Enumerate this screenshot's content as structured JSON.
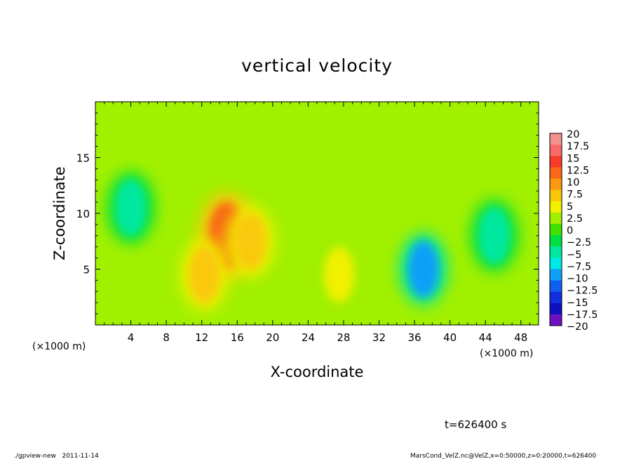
{
  "chart_data": {
    "type": "heatmap",
    "title": "vertical velocity",
    "xlabel": "X-coordinate",
    "ylabel": "Z-coordinate",
    "x_unit": "(×1000 m)",
    "y_unit": "(×1000 m)",
    "xlim": [
      0,
      50
    ],
    "ylim": [
      0,
      20
    ],
    "x_ticks": [
      4,
      8,
      12,
      16,
      20,
      24,
      28,
      32,
      36,
      40,
      44,
      48
    ],
    "y_ticks": [
      5,
      10,
      15
    ],
    "x_tick_labels": [
      "4",
      "8",
      "12",
      "16",
      "20",
      "24",
      "28",
      "32",
      "36",
      "40",
      "44",
      "48"
    ],
    "y_tick_labels": [
      "5",
      "10",
      "15"
    ],
    "colorbar": {
      "range": [
        -20,
        20
      ],
      "labels": [
        "20",
        "17.5",
        "15",
        "12.5",
        "10",
        "7.5",
        "5",
        "2.5",
        "0",
        "−2.5",
        "−5",
        "−7.5",
        "−10",
        "−12.5",
        "−15",
        "−17.5",
        "−20"
      ],
      "colors": [
        "#f4908e",
        "#f86a6a",
        "#f83c2c",
        "#f86818",
        "#fa9810",
        "#fac808",
        "#f0f000",
        "#a0f000",
        "#40e000",
        "#00e040",
        "#00e8a0",
        "#00e8e8",
        "#10a0f8",
        "#1060f0",
        "#1030e0",
        "#1010c0",
        "#7010c0"
      ]
    },
    "background_value": 1.5,
    "features": [
      {
        "x": 14.8,
        "z": 8.0,
        "value": 12.5
      },
      {
        "x": 12.3,
        "z": 4.5,
        "value": 8.5
      },
      {
        "x": 17.5,
        "z": 7.5,
        "value": 7.0
      },
      {
        "x": 27.5,
        "z": 4.5,
        "value": 5.5
      },
      {
        "x": 37.0,
        "z": 5.0,
        "value": -9.5
      },
      {
        "x": 4.0,
        "z": 10.5,
        "value": -4.5
      },
      {
        "x": 45.0,
        "z": 8.0,
        "value": -4.0
      }
    ]
  },
  "annotations": {
    "time": "t=626400 s",
    "footer_left": "./gpview-new   2011-11-14",
    "footer_right": "MarsCond_VelZ.nc@VelZ,x=0:50000,z=0:20000,t=626400"
  }
}
